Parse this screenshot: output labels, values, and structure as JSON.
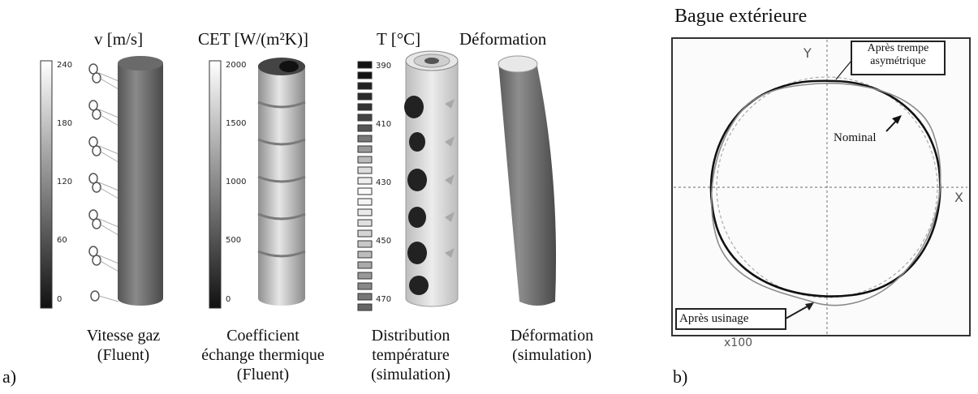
{
  "panel_a": {
    "label": "a)",
    "plots": [
      {
        "header": "v [m/s]",
        "scale_ticks": [
          "240",
          "180",
          "120",
          "60",
          "0"
        ],
        "caption_1": "Vitesse gaz",
        "caption_2": "(Fluent)"
      },
      {
        "header": "CET [W/(m²K)]",
        "scale_ticks": [
          "2000",
          "1500",
          "1000",
          "500",
          "0"
        ],
        "caption_1": "Coefficient",
        "caption_2": "échange thermique",
        "caption_3": "(Fluent)"
      },
      {
        "header": "T [°C]",
        "scale_ticks": [
          "390",
          "410",
          "430",
          "450",
          "470"
        ],
        "caption_1": "Distribution",
        "caption_2": "température",
        "caption_3": "(simulation)"
      },
      {
        "header": "Déformation",
        "caption_1": "Déformation",
        "caption_2": "(simulation)"
      }
    ]
  },
  "panel_b": {
    "label": "b)",
    "title": "Bague extérieure",
    "axis_x": "X",
    "axis_y": "Y",
    "callout_top": [
      "Après trempe",
      "asymétrique"
    ],
    "nominal": "Nominal",
    "callout_bottom": "Après usinage",
    "scale": "x100"
  }
}
